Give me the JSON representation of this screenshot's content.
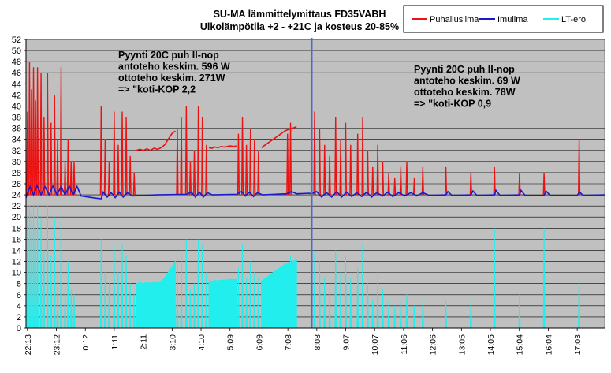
{
  "chart_data": {
    "type": "line",
    "title": [
      "SU-MA lämmittelymittaus  FD35VABH",
      "Ulkolämpötila +2 - +21C ja kosteus 20-85%"
    ],
    "annotations": [
      {
        "lines": [
          "Pyynti 20C puh II-nop",
          "antoteho keskim. 596 W",
          "ottoteho keskim.  271W",
          "=> \"koti-KOP 2,2"
        ]
      },
      {
        "lines": [
          "Pyynti 20C puh II-nop",
          "antoteho keskim. 69 W",
          "ottoteho keskim.  78W",
          "=> \"koti-KOP 0,9"
        ]
      }
    ],
    "ylim": [
      0,
      52
    ],
    "yticks": [
      0,
      2,
      4,
      6,
      8,
      10,
      12,
      14,
      16,
      18,
      20,
      22,
      24,
      26,
      28,
      30,
      32,
      34,
      36,
      38,
      40,
      42,
      44,
      46,
      48,
      50,
      52
    ],
    "xlim": [
      0,
      1155
    ],
    "xtick_labels": [
      "22:13",
      "23:12",
      "0:12",
      "1:11",
      "2:11",
      "3:10",
      "4:10",
      "5:09",
      "6:09",
      "7:08",
      "8:08",
      "9:07",
      "10:07",
      "11:06",
      "12:06",
      "13:05",
      "14:05",
      "15:04",
      "16:04",
      "17:03"
    ],
    "divider_x": 570,
    "grid": true,
    "legend_position": "top-right",
    "colors": {
      "plot_bg": "#c0c0c0",
      "divider": "#4b6ec4"
    },
    "series": [
      {
        "name": "Puhallusilma",
        "color": "#ee1111",
        "bursts": [
          {
            "at": 3,
            "peak": 39
          },
          {
            "at": 7,
            "peak": 48
          },
          {
            "at": 11,
            "peak": 43
          },
          {
            "at": 15,
            "peak": 47
          },
          {
            "at": 19,
            "peak": 41
          },
          {
            "at": 23,
            "peak": 47
          },
          {
            "at": 30,
            "peak": 46
          },
          {
            "at": 36,
            "peak": 38
          },
          {
            "at": 43,
            "peak": 46
          },
          {
            "at": 50,
            "peak": 37
          },
          {
            "at": 57,
            "peak": 42
          },
          {
            "at": 63,
            "peak": 34
          },
          {
            "at": 70,
            "peak": 47
          },
          {
            "at": 78,
            "peak": 30
          },
          {
            "at": 84,
            "peak": 34
          },
          {
            "at": 90,
            "peak": 30
          },
          {
            "at": 96,
            "peak": 30
          },
          {
            "at": 150,
            "peak": 40
          },
          {
            "at": 158,
            "peak": 34
          },
          {
            "at": 166,
            "peak": 30
          },
          {
            "at": 176,
            "peak": 39
          },
          {
            "at": 184,
            "peak": 33
          },
          {
            "at": 192,
            "peak": 39
          },
          {
            "at": 200,
            "peak": 38
          },
          {
            "at": 208,
            "peak": 31
          },
          {
            "at": 216,
            "peak": 28
          },
          {
            "at": 302,
            "peak": 36
          },
          {
            "at": 310,
            "peak": 38
          },
          {
            "at": 320,
            "peak": 40
          },
          {
            "at": 328,
            "peak": 30
          },
          {
            "at": 336,
            "peak": 32
          },
          {
            "at": 344,
            "peak": 40
          },
          {
            "at": 352,
            "peak": 38
          },
          {
            "at": 360,
            "peak": 33
          },
          {
            "at": 424,
            "peak": 35
          },
          {
            "at": 432,
            "peak": 38
          },
          {
            "at": 440,
            "peak": 33
          },
          {
            "at": 448,
            "peak": 36
          },
          {
            "at": 456,
            "peak": 34
          },
          {
            "at": 464,
            "peak": 32
          },
          {
            "at": 522,
            "peak": 35
          },
          {
            "at": 528,
            "peak": 37
          },
          {
            "at": 576,
            "peak": 39
          },
          {
            "at": 586,
            "peak": 36
          },
          {
            "at": 596,
            "peak": 33
          },
          {
            "at": 606,
            "peak": 31
          },
          {
            "at": 618,
            "peak": 38
          },
          {
            "at": 628,
            "peak": 34
          },
          {
            "at": 638,
            "peak": 37
          },
          {
            "at": 648,
            "peak": 33
          },
          {
            "at": 662,
            "peak": 35
          },
          {
            "at": 672,
            "peak": 38
          },
          {
            "at": 682,
            "peak": 32
          },
          {
            "at": 692,
            "peak": 29
          },
          {
            "at": 702,
            "peak": 33
          },
          {
            "at": 712,
            "peak": 30
          },
          {
            "at": 724,
            "peak": 28
          },
          {
            "at": 736,
            "peak": 27
          },
          {
            "at": 748,
            "peak": 29
          },
          {
            "at": 760,
            "peak": 30
          },
          {
            "at": 775,
            "peak": 27
          },
          {
            "at": 792,
            "peak": 29
          },
          {
            "at": 838,
            "peak": 29
          },
          {
            "at": 888,
            "peak": 28
          },
          {
            "at": 935,
            "peak": 29
          },
          {
            "at": 985,
            "peak": 28
          },
          {
            "at": 1034,
            "peak": 28
          },
          {
            "at": 1104,
            "peak": 34
          }
        ],
        "plateaus": [
          {
            "from": 220,
            "to": 298,
            "values": [
              32,
              32.2,
              32,
              32.3,
              32,
              32.4,
              32.2,
              32.5,
              33,
              34,
              35,
              35.5
            ]
          },
          {
            "from": 365,
            "to": 420,
            "values": [
              32.5,
              32.4,
              32.6,
              32.5,
              32.7,
              32.6,
              32.7,
              32.8,
              32.7,
              32.8
            ]
          },
          {
            "from": 470,
            "to": 540,
            "values": [
              32.5,
              33,
              33.5,
              34,
              34.5,
              35,
              35.5,
              35.8,
              36,
              36.3
            ]
          },
          {
            "from": 700,
            "to": 730,
            "values": [
              39
            ]
          }
        ]
      },
      {
        "name": "Imuilma",
        "color": "#1a1acc",
        "points": [
          [
            0,
            23.5
          ],
          [
            8,
            25.5
          ],
          [
            15,
            24
          ],
          [
            22,
            25.7
          ],
          [
            30,
            24
          ],
          [
            38,
            25.5
          ],
          [
            46,
            24
          ],
          [
            54,
            25.6
          ],
          [
            62,
            24
          ],
          [
            70,
            25.5
          ],
          [
            78,
            24
          ],
          [
            86,
            25.6
          ],
          [
            94,
            24
          ],
          [
            102,
            25.5
          ],
          [
            110,
            23.8
          ],
          [
            140,
            23.4
          ],
          [
            150,
            23.3
          ],
          [
            154,
            24.5
          ],
          [
            162,
            23.6
          ],
          [
            170,
            24.4
          ],
          [
            178,
            23.5
          ],
          [
            186,
            24.5
          ],
          [
            194,
            23.6
          ],
          [
            202,
            24.4
          ],
          [
            212,
            23.8
          ],
          [
            260,
            24
          ],
          [
            320,
            24.1
          ],
          [
            330,
            24.5
          ],
          [
            338,
            23.6
          ],
          [
            346,
            24.5
          ],
          [
            354,
            23.6
          ],
          [
            362,
            24.4
          ],
          [
            372,
            24
          ],
          [
            420,
            24.1
          ],
          [
            430,
            24.6
          ],
          [
            438,
            23.8
          ],
          [
            446,
            24.5
          ],
          [
            454,
            23.7
          ],
          [
            462,
            24.4
          ],
          [
            472,
            24
          ],
          [
            520,
            24.2
          ],
          [
            530,
            24.6
          ],
          [
            540,
            24.2
          ],
          [
            565,
            24.3
          ],
          [
            570,
            24.2
          ],
          [
            580,
            24.6
          ],
          [
            590,
            23.6
          ],
          [
            600,
            24.4
          ],
          [
            610,
            23.6
          ],
          [
            620,
            24.6
          ],
          [
            630,
            23.6
          ],
          [
            640,
            24.5
          ],
          [
            650,
            23.7
          ],
          [
            660,
            24.4
          ],
          [
            670,
            23.7
          ],
          [
            680,
            24.5
          ],
          [
            690,
            23.6
          ],
          [
            700,
            24.4
          ],
          [
            712,
            23.8
          ],
          [
            722,
            24.5
          ],
          [
            732,
            23.7
          ],
          [
            744,
            24.4
          ],
          [
            756,
            23.8
          ],
          [
            768,
            24.4
          ],
          [
            780,
            23.8
          ],
          [
            792,
            24.4
          ],
          [
            805,
            23.9
          ],
          [
            838,
            24
          ],
          [
            842,
            24.6
          ],
          [
            850,
            23.9
          ],
          [
            888,
            24
          ],
          [
            892,
            24.7
          ],
          [
            900,
            23.9
          ],
          [
            935,
            24
          ],
          [
            938,
            24.8
          ],
          [
            946,
            23.9
          ],
          [
            985,
            24
          ],
          [
            988,
            24.8
          ],
          [
            996,
            23.9
          ],
          [
            1034,
            23.9
          ],
          [
            1038,
            24.7
          ],
          [
            1046,
            23.9
          ],
          [
            1100,
            23.9
          ],
          [
            1105,
            24.5
          ],
          [
            1112,
            23.9
          ],
          [
            1155,
            24
          ]
        ]
      },
      {
        "name": "LT-ero",
        "color": "#22eeee",
        "fill": true,
        "bursts": [
          {
            "at": 3,
            "peak": 22
          },
          {
            "at": 7,
            "peak": 22
          },
          {
            "at": 11,
            "peak": 21
          },
          {
            "at": 15,
            "peak": 22
          },
          {
            "at": 19,
            "peak": 18
          },
          {
            "at": 23,
            "peak": 22
          },
          {
            "at": 30,
            "peak": 20
          },
          {
            "at": 36,
            "peak": 14
          },
          {
            "at": 43,
            "peak": 22
          },
          {
            "at": 50,
            "peak": 13
          },
          {
            "at": 57,
            "peak": 20
          },
          {
            "at": 63,
            "peak": 10
          },
          {
            "at": 70,
            "peak": 22
          },
          {
            "at": 78,
            "peak": 8
          },
          {
            "at": 84,
            "peak": 12
          },
          {
            "at": 90,
            "peak": 7
          },
          {
            "at": 96,
            "peak": 6
          },
          {
            "at": 150,
            "peak": 16
          },
          {
            "at": 158,
            "peak": 10
          },
          {
            "at": 166,
            "peak": 8
          },
          {
            "at": 176,
            "peak": 15
          },
          {
            "at": 184,
            "peak": 10
          },
          {
            "at": 192,
            "peak": 15
          },
          {
            "at": 200,
            "peak": 13
          },
          {
            "at": 208,
            "peak": 8
          },
          {
            "at": 216,
            "peak": 6
          },
          {
            "at": 302,
            "peak": 12
          },
          {
            "at": 310,
            "peak": 14
          },
          {
            "at": 320,
            "peak": 16
          },
          {
            "at": 328,
            "peak": 7
          },
          {
            "at": 336,
            "peak": 8
          },
          {
            "at": 344,
            "peak": 16
          },
          {
            "at": 352,
            "peak": 15
          },
          {
            "at": 360,
            "peak": 10
          },
          {
            "at": 424,
            "peak": 11
          },
          {
            "at": 432,
            "peak": 15
          },
          {
            "at": 440,
            "peak": 9
          },
          {
            "at": 448,
            "peak": 12
          },
          {
            "at": 456,
            "peak": 10
          },
          {
            "at": 464,
            "peak": 9
          },
          {
            "at": 522,
            "peak": 11
          },
          {
            "at": 528,
            "peak": 13
          },
          {
            "at": 576,
            "peak": 14
          },
          {
            "at": 586,
            "peak": 12
          },
          {
            "at": 596,
            "peak": 9
          },
          {
            "at": 606,
            "peak": 7
          },
          {
            "at": 618,
            "peak": 14
          },
          {
            "at": 628,
            "peak": 10
          },
          {
            "at": 638,
            "peak": 13
          },
          {
            "at": 648,
            "peak": 9
          },
          {
            "at": 662,
            "peak": 11
          },
          {
            "at": 672,
            "peak": 15
          },
          {
            "at": 682,
            "peak": 8
          },
          {
            "at": 692,
            "peak": 5
          },
          {
            "at": 702,
            "peak": 10
          },
          {
            "at": 712,
            "peak": 7
          },
          {
            "at": 724,
            "peak": 5
          },
          {
            "at": 736,
            "peak": 4
          },
          {
            "at": 748,
            "peak": 5
          },
          {
            "at": 760,
            "peak": 6
          },
          {
            "at": 775,
            "peak": 4
          },
          {
            "at": 792,
            "peak": 5
          },
          {
            "at": 838,
            "peak": 5
          },
          {
            "at": 888,
            "peak": 5
          },
          {
            "at": 935,
            "peak": 18
          },
          {
            "at": 985,
            "peak": 6
          },
          {
            "at": 1034,
            "peak": 18
          },
          {
            "at": 1104,
            "peak": 10
          }
        ],
        "plateaus": [
          {
            "from": 220,
            "to": 298,
            "values": [
              8,
              8.2,
              8,
              8.3,
              8,
              8.4,
              8.2,
              8.5,
              9,
              10,
              11,
              12
            ]
          },
          {
            "from": 365,
            "to": 420,
            "values": [
              8.5,
              8.4,
              8.6,
              8.5,
              8.7,
              8.6,
              8.7,
              8.8,
              8.7,
              8.8
            ]
          },
          {
            "from": 470,
            "to": 540,
            "values": [
              8.5,
              9,
              9.5,
              10,
              10.5,
              11,
              11.5,
              11.8,
              12,
              12.3
            ]
          }
        ]
      }
    ]
  }
}
